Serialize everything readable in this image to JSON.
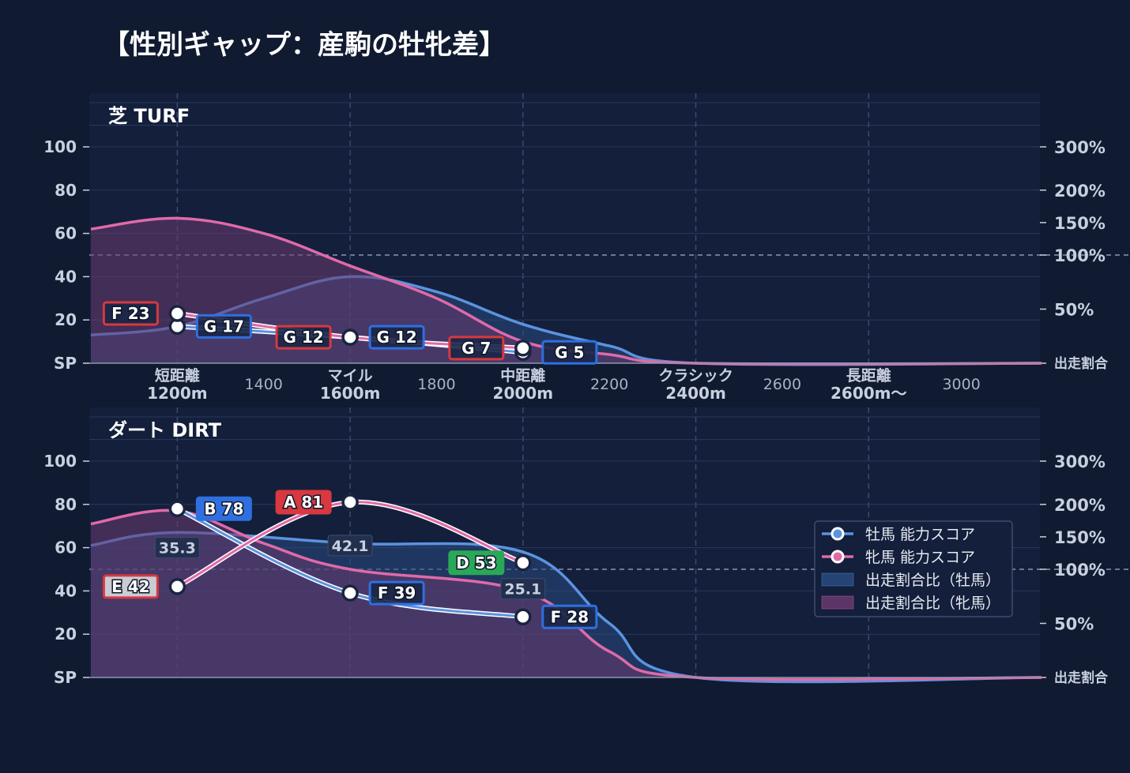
{
  "title": "【性別ギャップ：産駒の牡牝差】",
  "colors": {
    "background": "#101a30",
    "panel": "#131f3b",
    "male": "#5b93e0",
    "female": "#e06aa8",
    "male_area": "#2a4a80",
    "female_area": "#6a3a70",
    "grade_red": "#d8383f",
    "grade_blue": "#2f6fe0",
    "grade_green": "#2aa858",
    "grade_gray": "#7a8396"
  },
  "axes": {
    "left_ticks": [
      "100",
      "80",
      "60",
      "40",
      "20",
      "SP"
    ],
    "left_values": [
      100,
      80,
      60,
      40,
      20,
      0
    ],
    "right_ticks": [
      "300%",
      "200%",
      "150%",
      "100%",
      "50%",
      "出走割合"
    ],
    "right_values": [
      300,
      200,
      150,
      100,
      50,
      0
    ],
    "x_labels": [
      {
        "line1": "短距離",
        "line2": "1200m",
        "x": 1200
      },
      {
        "line1": "",
        "line2": "1400",
        "x": 1400
      },
      {
        "line1": "マイル",
        "line2": "1600m",
        "x": 1600
      },
      {
        "line1": "",
        "line2": "1800",
        "x": 1800
      },
      {
        "line1": "中距離",
        "line2": "2000m",
        "x": 2000
      },
      {
        "line1": "",
        "line2": "2200",
        "x": 2200
      },
      {
        "line1": "クラシック",
        "line2": "2400m",
        "x": 2400
      },
      {
        "line1": "",
        "line2": "2600",
        "x": 2600
      },
      {
        "line1": "長距離",
        "line2": "2600m〜",
        "x": 2600
      },
      {
        "line1": "",
        "line2": "3000",
        "x": 3000
      }
    ]
  },
  "legend": {
    "male_score": "牡馬 能力スコア",
    "female_score": "牝馬 能力スコア",
    "male_ratio": "出走割合比（牡馬）",
    "female_ratio": "出走割合比（牝馬）"
  },
  "chart_data": [
    {
      "type": "line",
      "panel": "芝 TURF",
      "y_left_range": [
        0,
        100
      ],
      "y_right_scale": "log-like ratio %",
      "x_range": [
        1000,
        3200
      ],
      "series": [
        {
          "name": "牡馬 能力スコア",
          "x": [
            1200,
            1600,
            2000
          ],
          "y": [
            17,
            12,
            5
          ]
        },
        {
          "name": "牝馬 能力スコア",
          "x": [
            1200,
            1600,
            2000
          ],
          "y": [
            23,
            12,
            7
          ]
        },
        {
          "name": "出走割合比（牡馬）",
          "x": [
            1000,
            1200,
            1400,
            1600,
            1800,
            2000,
            2200,
            2400,
            3200
          ],
          "y": [
            13,
            17,
            30,
            40,
            33,
            18,
            8,
            0,
            0
          ]
        },
        {
          "name": "出走割合比（牝馬）",
          "x": [
            1000,
            1200,
            1400,
            1600,
            1800,
            2000,
            2200,
            2400,
            3200
          ],
          "y": [
            62,
            67,
            60,
            45,
            30,
            10,
            4,
            0,
            0
          ]
        }
      ],
      "badges": [
        {
          "text": "F 23",
          "x": 1200,
          "y": 23,
          "color": "red",
          "side": "left"
        },
        {
          "text": "G 17",
          "x": 1200,
          "y": 17,
          "color": "blue",
          "side": "right"
        },
        {
          "text": "G 12",
          "x": 1600,
          "y": 12,
          "color": "red",
          "side": "left"
        },
        {
          "text": "G 12",
          "x": 1600,
          "y": 12,
          "color": "blue",
          "side": "right"
        },
        {
          "text": "G 7",
          "x": 2000,
          "y": 7,
          "color": "red",
          "side": "left"
        },
        {
          "text": "G 5",
          "x": 2000,
          "y": 5,
          "color": "blue",
          "side": "right"
        }
      ],
      "ratio_labels": []
    },
    {
      "type": "line",
      "panel": "ダート DIRT",
      "y_left_range": [
        0,
        100
      ],
      "x_range": [
        1000,
        3200
      ],
      "series": [
        {
          "name": "牡馬 能力スコア",
          "x": [
            1200,
            1600,
            2000
          ],
          "y": [
            78,
            39,
            28
          ]
        },
        {
          "name": "牝馬 能力スコア",
          "x": [
            1200,
            1600,
            2000
          ],
          "y": [
            42,
            81,
            53
          ]
        },
        {
          "name": "出走割合比（牡馬）",
          "x": [
            1000,
            1200,
            1600,
            2000,
            2200,
            2400,
            3200
          ],
          "y": [
            61,
            67,
            62,
            58,
            25,
            0,
            0
          ]
        },
        {
          "name": "出走割合比（牝馬）",
          "x": [
            1000,
            1200,
            1400,
            1600,
            2000,
            2200,
            2400,
            3200
          ],
          "y": [
            71,
            77,
            62,
            50,
            40,
            12,
            0,
            0
          ]
        }
      ],
      "badges": [
        {
          "text": "B 78",
          "x": 1200,
          "y": 78,
          "color": "blue",
          "side": "right"
        },
        {
          "text": "E 42",
          "x": 1200,
          "y": 42,
          "color": "gray",
          "side": "left"
        },
        {
          "text": "A 81",
          "x": 1600,
          "y": 81,
          "color": "red",
          "side": "left"
        },
        {
          "text": "F 39",
          "x": 1600,
          "y": 39,
          "color": "blue",
          "side": "right"
        },
        {
          "text": "D 53",
          "x": 2000,
          "y": 53,
          "color": "green",
          "side": "left"
        },
        {
          "text": "F 28",
          "x": 2000,
          "y": 28,
          "color": "blue",
          "side": "right"
        }
      ],
      "ratio_labels": [
        {
          "text": "35.3",
          "x": 1200,
          "y": 60
        },
        {
          "text": "42.1",
          "x": 1600,
          "y": 61
        },
        {
          "text": "25.1",
          "x": 2000,
          "y": 41
        }
      ]
    }
  ]
}
